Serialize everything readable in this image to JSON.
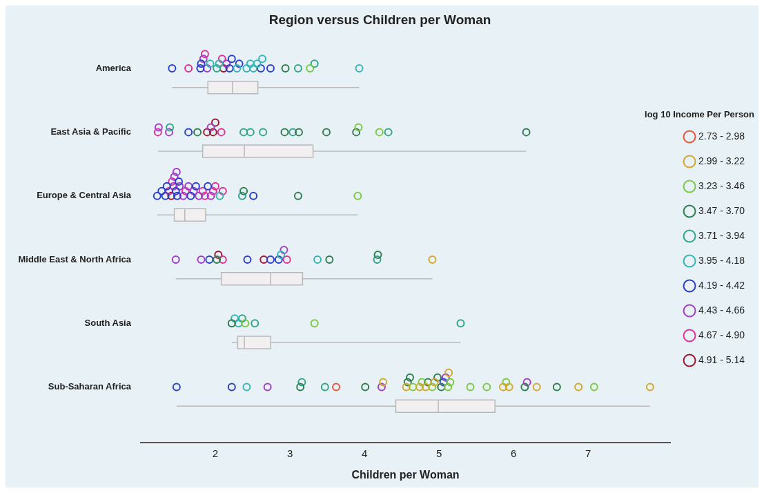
{
  "chart_data": {
    "type": "box",
    "orientation": "horizontal",
    "title": "Region versus Children per Woman",
    "xlabel": "Children per Woman",
    "legend_title": "log 10 Income Per Person",
    "legend": "right",
    "grid": false,
    "marker": "circle",
    "xlim": [
      1,
      8.1
    ],
    "xticks": [
      2,
      3,
      4,
      5,
      6,
      7
    ],
    "categories": [
      "America",
      "East Asia & Pacific",
      "Europe & Central Asia",
      "Middle East & North Africa",
      "South Asia",
      "Sub-Saharan Africa"
    ],
    "boxes": [
      {
        "low": 1.42,
        "q1": 1.9,
        "median": 2.23,
        "q3": 2.57,
        "high": 3.93
      },
      {
        "low": 1.23,
        "q1": 1.83,
        "median": 2.39,
        "q3": 3.31,
        "high": 6.17
      },
      {
        "low": 1.22,
        "q1": 1.45,
        "median": 1.59,
        "q3": 1.87,
        "high": 3.91
      },
      {
        "low": 1.47,
        "q1": 2.08,
        "median": 2.74,
        "q3": 3.17,
        "high": 4.91
      },
      {
        "low": 2.22,
        "q1": 2.3,
        "median": 2.39,
        "q3": 2.74,
        "high": 5.29
      },
      {
        "low": 1.48,
        "q1": 4.42,
        "median": 4.99,
        "q3": 5.75,
        "high": 7.83
      }
    ],
    "series": [
      {
        "type": "scatter",
        "name": "2.73 - 2.98",
        "color": "#e8553a",
        "x": [
          "Sub-Saharan Africa"
        ],
        "values": [
          3.62
        ]
      },
      {
        "type": "scatter",
        "name": "2.99 - 3.22",
        "color": "#d4a72c",
        "x": [
          "Middle East & North Africa",
          "Sub-Saharan Africa",
          "Sub-Saharan Africa",
          "Sub-Saharan Africa",
          "Sub-Saharan Africa",
          "Sub-Saharan Africa",
          "Sub-Saharan Africa",
          "Sub-Saharan Africa",
          "Sub-Saharan Africa",
          "Sub-Saharan Africa",
          "Sub-Saharan Africa",
          "Sub-Saharan Africa"
        ],
        "values": [
          4.91,
          4.25,
          4.56,
          4.74,
          4.82,
          4.94,
          5.13,
          5.86,
          5.94,
          6.31,
          6.87,
          7.83
        ]
      },
      {
        "type": "scatter",
        "name": "3.23 - 3.46",
        "color": "#7ac943",
        "x": [
          "America",
          "East Asia & Pacific",
          "East Asia & Pacific",
          "Europe & Central Asia",
          "South Asia",
          "South Asia",
          "Sub-Saharan Africa",
          "Sub-Saharan Africa",
          "Sub-Saharan Africa",
          "Sub-Saharan Africa",
          "Sub-Saharan Africa",
          "Sub-Saharan Africa",
          "Sub-Saharan Africa",
          "Sub-Saharan Africa",
          "Sub-Saharan Africa"
        ],
        "values": [
          3.27,
          3.92,
          4.2,
          3.91,
          2.4,
          3.33,
          4.65,
          4.77,
          4.91,
          5.12,
          5.15,
          5.42,
          5.64,
          5.9,
          7.08
        ]
      },
      {
        "type": "scatter",
        "name": "3.47 - 3.70",
        "color": "#2e7d4f",
        "x": [
          "America",
          "East Asia & Pacific",
          "East Asia & Pacific",
          "East Asia & Pacific",
          "East Asia & Pacific",
          "East Asia & Pacific",
          "East Asia & Pacific",
          "Europe & Central Asia",
          "Europe & Central Asia",
          "Middle East & North Africa",
          "Middle East & North Africa",
          "Middle East & North Africa",
          "South Asia",
          "Sub-Saharan Africa",
          "Sub-Saharan Africa",
          "Sub-Saharan Africa",
          "Sub-Saharan Africa",
          "Sub-Saharan Africa",
          "Sub-Saharan Africa",
          "Sub-Saharan Africa",
          "Sub-Saharan Africa",
          "Sub-Saharan Africa"
        ],
        "values": [
          2.94,
          1.76,
          2.93,
          3.12,
          3.49,
          3.89,
          6.17,
          2.38,
          3.11,
          2.02,
          3.53,
          4.18,
          2.22,
          3.14,
          4.01,
          4.58,
          4.61,
          4.85,
          4.98,
          5.03,
          6.15,
          6.58
        ]
      },
      {
        "type": "scatter",
        "name": "3.71 - 3.94",
        "color": "#2fa58a",
        "x": [
          "America",
          "America",
          "America",
          "East Asia & Pacific",
          "East Asia & Pacific",
          "East Asia & Pacific",
          "East Asia & Pacific",
          "East Asia & Pacific",
          "East Asia & Pacific",
          "Europe & Central Asia",
          "Middle East & North Africa",
          "South Asia",
          "South Asia",
          "South Asia",
          "Sub-Saharan Africa",
          "Sub-Saharan Africa"
        ],
        "values": [
          2.02,
          3.11,
          3.33,
          1.39,
          2.38,
          2.47,
          2.64,
          3.04,
          4.32,
          2.36,
          4.17,
          2.36,
          2.53,
          5.29,
          3.16,
          3.47
        ]
      },
      {
        "type": "scatter",
        "name": "3.95 - 4.18",
        "color": "#33b5b5",
        "x": [
          "America",
          "America",
          "America",
          "America",
          "America",
          "America",
          "America",
          "America",
          "America",
          "Europe & Central Asia",
          "Middle East & North Africa",
          "Middle East & North Africa",
          "South Asia",
          "South Asia",
          "Sub-Saharan Africa"
        ],
        "values": [
          1.93,
          2.05,
          2.29,
          2.42,
          2.47,
          2.51,
          2.56,
          2.63,
          3.93,
          2.06,
          2.88,
          3.37,
          2.26,
          2.31,
          2.42
        ]
      },
      {
        "type": "scatter",
        "name": "4.19 - 4.42",
        "color": "#2d3fc9",
        "x": [
          "America",
          "America",
          "America",
          "America",
          "America",
          "America",
          "America",
          "America",
          "East Asia & Pacific",
          "Europe & Central Asia",
          "Europe & Central Asia",
          "Europe & Central Asia",
          "Europe & Central Asia",
          "Europe & Central Asia",
          "Europe & Central Asia",
          "Europe & Central Asia",
          "Europe & Central Asia",
          "Europe & Central Asia",
          "Europe & Central Asia",
          "Europe & Central Asia",
          "Middle East & North Africa",
          "Middle East & North Africa",
          "Middle East & North Africa",
          "Middle East & North Africa",
          "Sub-Saharan Africa",
          "Sub-Saharan Africa",
          "Sub-Saharan Africa"
        ],
        "values": [
          1.42,
          1.8,
          1.81,
          2.19,
          2.22,
          2.32,
          2.61,
          2.74,
          1.64,
          1.22,
          1.28,
          1.33,
          1.35,
          1.47,
          1.49,
          1.51,
          1.67,
          1.74,
          1.9,
          2.51,
          1.92,
          2.43,
          2.74,
          2.85,
          1.48,
          2.22,
          5.06
        ]
      },
      {
        "type": "scatter",
        "name": "4.43 - 4.66",
        "color": "#a23cc9",
        "x": [
          "America",
          "America",
          "America",
          "East Asia & Pacific",
          "East Asia & Pacific",
          "East Asia & Pacific",
          "Europe & Central Asia",
          "Europe & Central Asia",
          "Europe & Central Asia",
          "Europe & Central Asia",
          "Europe & Central Asia",
          "Europe & Central Asia",
          "Europe & Central Asia",
          "Europe & Central Asia",
          "Europe & Central Asia",
          "Middle East & North Africa",
          "Middle East & North Africa",
          "Middle East & North Africa",
          "Sub-Saharan Africa",
          "Sub-Saharan Africa",
          "Sub-Saharan Africa",
          "Sub-Saharan Africa"
        ],
        "values": [
          1.84,
          1.89,
          2.15,
          1.24,
          1.38,
          1.94,
          1.44,
          1.45,
          1.48,
          1.52,
          1.57,
          1.64,
          1.71,
          1.78,
          1.94,
          1.47,
          1.81,
          2.92,
          2.7,
          4.23,
          5.09,
          6.18
        ]
      },
      {
        "type": "scatter",
        "name": "4.67 - 4.90",
        "color": "#e0309a",
        "x": [
          "America",
          "America",
          "America",
          "East Asia & Pacific",
          "East Asia & Pacific",
          "Europe & Central Asia",
          "Europe & Central Asia",
          "Europe & Central Asia",
          "Europe & Central Asia",
          "Europe & Central Asia",
          "Europe & Central Asia",
          "Europe & Central Asia",
          "Europe & Central Asia",
          "Middle East & North Africa",
          "Middle East & North Africa"
        ],
        "values": [
          1.64,
          1.86,
          2.09,
          1.23,
          2.08,
          1.38,
          1.42,
          1.6,
          1.83,
          1.86,
          1.97,
          2.0,
          2.1,
          2.1,
          2.96
        ]
      },
      {
        "type": "scatter",
        "name": "4.91 - 5.14",
        "color": "#a01530",
        "x": [
          "America",
          "East Asia & Pacific",
          "East Asia & Pacific",
          "East Asia & Pacific",
          "Europe & Central Asia",
          "Middle East & North Africa",
          "Middle East & North Africa"
        ],
        "values": [
          2.11,
          1.89,
          1.97,
          2.0,
          1.41,
          2.04,
          2.65
        ]
      }
    ]
  }
}
